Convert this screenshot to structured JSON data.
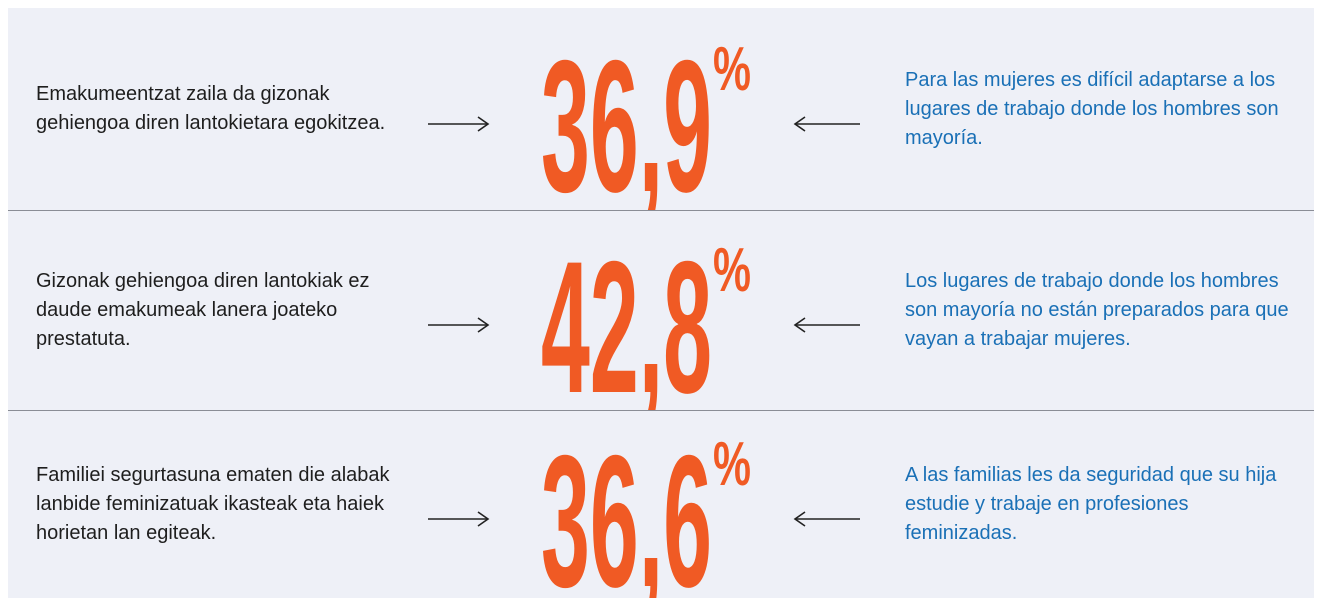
{
  "rows": [
    {
      "basque": "Emakumeentzat zaila da gizonak gehiengoa diren lantokietara egokitzea.",
      "value": "36,9",
      "unit": "%",
      "spanish": "Para las mujeres es difícil adaptarse a los lugares de trabajo donde los hombres son mayoría."
    },
    {
      "basque": "Gizonak gehiengoa diren lantokiak ez daude emakumeak lanera joateko prestatuta.",
      "value": "42,8",
      "unit": "%",
      "spanish": "Los lugares de trabajo donde los hombres son mayoría no están preparados para que vayan a trabajar mujeres."
    },
    {
      "basque": "Familiei segurtasuna ematen die alabak lanbide feminizatuak ikasteak eta haiek horietan lan egiteak.",
      "value": "36,6",
      "unit": "%",
      "spanish": "A las familias les da seguridad que su hija estudie y trabaje en profesiones feminizadas."
    }
  ]
}
